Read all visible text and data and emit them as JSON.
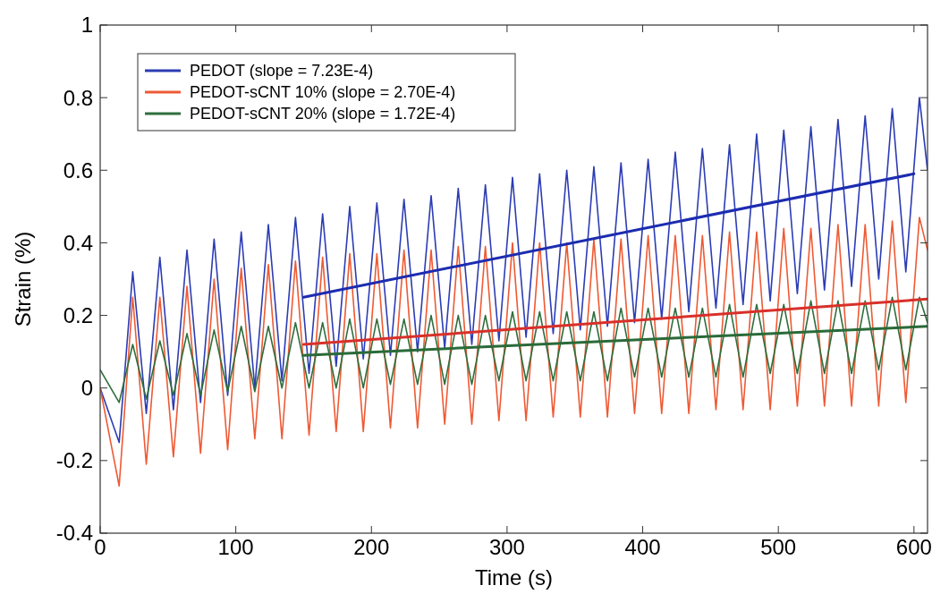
{
  "chart_data": {
    "type": "line",
    "xlabel": "Time (s)",
    "ylabel": "Strain (%)",
    "x": [
      0,
      14,
      24,
      34,
      44,
      54,
      64,
      74,
      84,
      94,
      104,
      114,
      124,
      134,
      144,
      154,
      164,
      174,
      184,
      194,
      204,
      214,
      224,
      234,
      244,
      254,
      264,
      274,
      284,
      294,
      304,
      314,
      324,
      334,
      344,
      354,
      364,
      374,
      384,
      394,
      404,
      414,
      424,
      434,
      444,
      454,
      464,
      474,
      484,
      494,
      504,
      514,
      524,
      534,
      544,
      554,
      564,
      574,
      584,
      594,
      604,
      610
    ],
    "xlim": [
      0,
      610
    ],
    "xticks": [
      0,
      100,
      200,
      300,
      400,
      500,
      600
    ],
    "ylim": [
      -0.4,
      1
    ],
    "yticks": [
      -0.4,
      -0.2,
      0,
      0.2,
      0.4,
      0.6,
      0.8,
      1
    ],
    "grid": false,
    "legend": "top left",
    "line_style": "solid",
    "marker": "none",
    "series": [
      {
        "name": "PEDOT (slope = 7.23E-4)",
        "color": "#2c3cb4",
        "values": [
          0,
          -0.15,
          0.32,
          -0.07,
          0.36,
          -0.06,
          0.38,
          -0.04,
          0.41,
          -0.02,
          0.43,
          0.0,
          0.45,
          0.02,
          0.47,
          0.04,
          0.48,
          0.06,
          0.5,
          0.08,
          0.51,
          0.09,
          0.52,
          0.1,
          0.53,
          0.11,
          0.55,
          0.12,
          0.56,
          0.13,
          0.58,
          0.14,
          0.59,
          0.15,
          0.6,
          0.16,
          0.61,
          0.17,
          0.62,
          0.18,
          0.63,
          0.19,
          0.65,
          0.21,
          0.66,
          0.22,
          0.67,
          0.23,
          0.7,
          0.24,
          0.71,
          0.26,
          0.72,
          0.27,
          0.74,
          0.28,
          0.75,
          0.3,
          0.77,
          0.32,
          0.8,
          0.6
        ]
      },
      {
        "name": "PEDOT-sCNT 10% (slope = 2.70E-4)",
        "color": "#ee5a34",
        "values": [
          0,
          -0.27,
          0.25,
          -0.21,
          0.25,
          -0.19,
          0.28,
          -0.18,
          0.3,
          -0.17,
          0.33,
          -0.14,
          0.34,
          -0.14,
          0.35,
          -0.13,
          0.36,
          -0.12,
          0.37,
          -0.12,
          0.37,
          -0.11,
          0.38,
          -0.11,
          0.38,
          -0.1,
          0.39,
          -0.1,
          0.39,
          -0.09,
          0.4,
          -0.09,
          0.4,
          -0.08,
          0.4,
          -0.08,
          0.41,
          -0.08,
          0.41,
          -0.07,
          0.42,
          -0.07,
          0.42,
          -0.07,
          0.42,
          -0.06,
          0.43,
          -0.06,
          0.43,
          -0.06,
          0.44,
          -0.05,
          0.44,
          -0.05,
          0.45,
          -0.05,
          0.45,
          -0.05,
          0.46,
          -0.04,
          0.47,
          0.38
        ]
      },
      {
        "name": "PEDOT-sCNT 20% (slope = 1.72E-4)",
        "color": "#2e6e3c",
        "values": [
          0.05,
          -0.04,
          0.12,
          -0.03,
          0.13,
          -0.02,
          0.15,
          -0.02,
          0.16,
          -0.01,
          0.17,
          -0.01,
          0.17,
          0.0,
          0.18,
          0.0,
          0.18,
          0.0,
          0.19,
          0.0,
          0.19,
          0.01,
          0.19,
          0.01,
          0.2,
          0.01,
          0.2,
          0.01,
          0.2,
          0.02,
          0.21,
          0.02,
          0.21,
          0.02,
          0.21,
          0.02,
          0.21,
          0.02,
          0.22,
          0.03,
          0.22,
          0.03,
          0.22,
          0.03,
          0.22,
          0.03,
          0.23,
          0.03,
          0.23,
          0.04,
          0.23,
          0.04,
          0.24,
          0.04,
          0.24,
          0.04,
          0.24,
          0.05,
          0.25,
          0.05,
          0.25,
          0.18
        ]
      },
      {
        "type": "line",
        "color": "#1c2cb0",
        "x": [
          150,
          600
        ],
        "values": [
          0.25,
          0.59
        ]
      },
      {
        "type": "line",
        "color": "#d8302a",
        "x": [
          150,
          610
        ],
        "values": [
          0.12,
          0.245
        ]
      },
      {
        "type": "line",
        "color": "#2a6a38",
        "x": [
          150,
          610
        ],
        "values": [
          0.09,
          0.17
        ]
      }
    ]
  }
}
